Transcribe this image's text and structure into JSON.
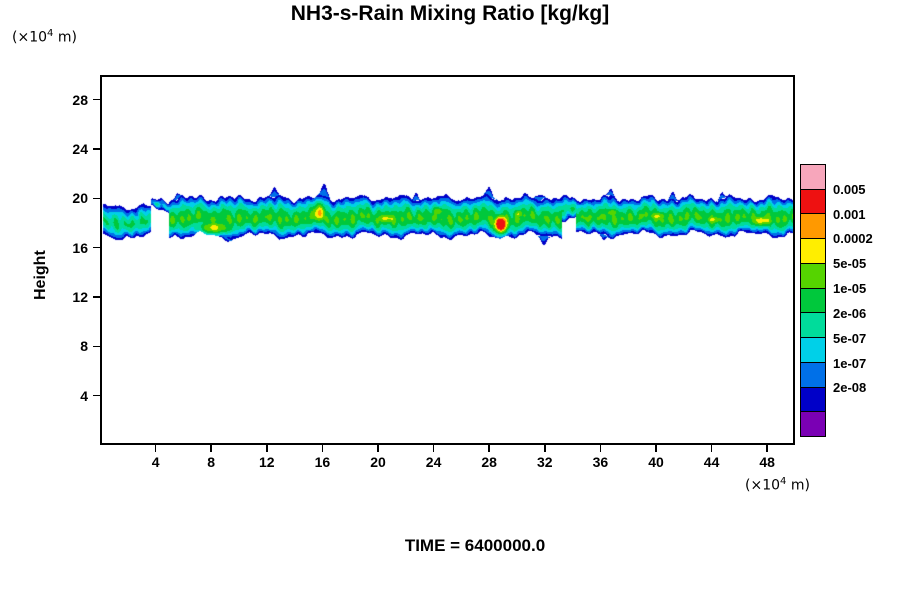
{
  "chart_data": {
    "type": "heatmap",
    "title": "NH3-s-Rain Mixing Ratio [kg/kg]",
    "ylabel": "Height",
    "xlabel": "",
    "axis_unit": {
      "prefix": "(×10",
      "exp": "4",
      "suffix": " m)"
    },
    "time_label": "TIME = 6400000.0",
    "x_range": [
      0,
      50
    ],
    "y_range": [
      0,
      30
    ],
    "x_ticks": [
      4,
      8,
      12,
      16,
      20,
      24,
      28,
      32,
      36,
      40,
      44,
      48
    ],
    "y_ticks": [
      4,
      8,
      12,
      16,
      20,
      24,
      28
    ],
    "grid": false,
    "legend_position": "right",
    "colorbar": {
      "labels": [
        "0.005",
        "0.001",
        "0.0002",
        "5e-05",
        "1e-05",
        "2e-06",
        "5e-07",
        "1e-07",
        "2e-08"
      ],
      "colors_top_to_bottom": [
        "#f7a6bb",
        "#ee1111",
        "#ff9900",
        "#ffee00",
        "#55d400",
        "#00c83c",
        "#00dc9b",
        "#00d0e8",
        "#0070e8",
        "#0000c8",
        "#7a00b4"
      ]
    },
    "field": {
      "description": "Rain mixing-ratio layer between heights ~16.5 and ~20.5 (x10^4 m) spanning the full x domain; mostly 2e-06..1e-05 (green) with 5e-05..0.001 pockets (yellow/orange) and a >0.001 red core near x=29; weak detached cyan blob at far left; dark-blue fringe with spikes along the top edge.",
      "levels": [
        {
          "max": 0.1,
          "color": "#0000c8"
        },
        {
          "max": 0.19,
          "color": "#0070e8"
        },
        {
          "max": 0.29,
          "color": "#00d0e8"
        },
        {
          "max": 0.41,
          "color": "#00dc9b"
        },
        {
          "max": 0.55,
          "color": "#00c83c"
        },
        {
          "max": 0.68,
          "color": "#55d400"
        },
        {
          "max": 0.79,
          "color": "#ffee00"
        },
        {
          "max": 0.88,
          "color": "#ff9900"
        },
        {
          "max": 1.01,
          "color": "#ee1111"
        }
      ],
      "regions": [
        {
          "x0": 0.2,
          "x1": 3.6,
          "top": 19.4,
          "bottom": 16.9,
          "intensity": 0.42
        },
        {
          "x0": 3.6,
          "x1": 4.9,
          "top": 19.9,
          "bottom": 19.1,
          "intensity": 0.25
        },
        {
          "x0": 4.9,
          "x1": 33.2,
          "top": 20.1,
          "bottom": 17.0,
          "intensity": 0.55
        },
        {
          "x0": 33.2,
          "x1": 34.2,
          "top": 20.0,
          "bottom": 18.4,
          "intensity": 0.4
        },
        {
          "x0": 34.2,
          "x1": 50.0,
          "top": 20.05,
          "bottom": 17.1,
          "intensity": 0.56
        }
      ],
      "hotspots": [
        {
          "x": 8.2,
          "h": 17.6,
          "wx": 1.3,
          "wy": 0.55,
          "s": 0.58
        },
        {
          "x": 15.7,
          "h": 18.9,
          "wx": 0.55,
          "wy": 0.9,
          "s": 0.58
        },
        {
          "x": 20.6,
          "h": 18.4,
          "wx": 0.9,
          "wy": 0.5,
          "s": 0.46
        },
        {
          "x": 24.3,
          "h": 19.0,
          "wx": 0.5,
          "wy": 0.4,
          "s": 0.45
        },
        {
          "x": 28.8,
          "h": 17.9,
          "wx": 0.55,
          "wy": 0.75,
          "s": 0.95
        },
        {
          "x": 30.1,
          "h": 18.8,
          "wx": 0.4,
          "wy": 0.4,
          "s": 0.45
        },
        {
          "x": 36.8,
          "h": 18.9,
          "wx": 0.6,
          "wy": 0.4,
          "s": 0.42
        },
        {
          "x": 40.1,
          "h": 18.6,
          "wx": 0.8,
          "wy": 0.45,
          "s": 0.44
        },
        {
          "x": 44.1,
          "h": 18.3,
          "wx": 0.7,
          "wy": 0.4,
          "s": 0.42
        },
        {
          "x": 47.6,
          "h": 18.2,
          "wx": 1.0,
          "wy": 0.5,
          "s": 0.5
        }
      ],
      "top_spikes": [
        {
          "x": 5.5,
          "a": 0.5,
          "w": 0.18
        },
        {
          "x": 12.5,
          "a": 0.85,
          "w": 0.22
        },
        {
          "x": 16.1,
          "a": 1.0,
          "w": 0.25
        },
        {
          "x": 22.7,
          "a": 0.6,
          "w": 0.2
        },
        {
          "x": 28.0,
          "a": 0.75,
          "w": 0.22
        },
        {
          "x": 31.6,
          "a": 0.5,
          "w": 0.3
        },
        {
          "x": 36.7,
          "a": 0.55,
          "w": 0.2
        },
        {
          "x": 41.2,
          "a": 0.6,
          "w": 0.22
        },
        {
          "x": 44.7,
          "a": 0.5,
          "w": 0.2
        }
      ],
      "bottom_dips": [
        {
          "x": 9.0,
          "a": 0.4,
          "w": 0.3
        },
        {
          "x": 31.9,
          "a": 0.8,
          "w": 0.25
        },
        {
          "x": 36.2,
          "a": 0.45,
          "w": 0.2
        }
      ]
    }
  }
}
